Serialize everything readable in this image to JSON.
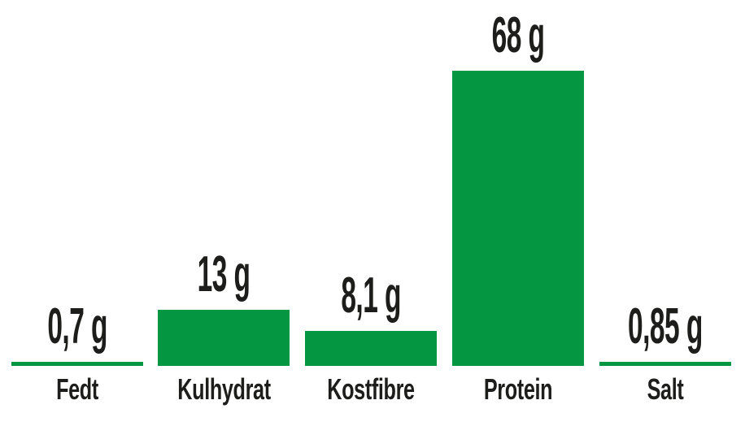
{
  "chart_data": {
    "type": "bar",
    "title": "",
    "orientation": "vertical",
    "categories": [
      "Fedt",
      "Kulhydrat",
      "Kostfibre",
      "Protein",
      "Salt"
    ],
    "values": [
      0.7,
      13,
      8.1,
      68,
      0.85
    ],
    "value_labels": [
      "0,7 g",
      "13 g",
      "8,1 g",
      "68 g",
      "0,85 g"
    ],
    "unit": "g",
    "ylim": [
      0,
      68
    ],
    "grid": false,
    "legend": false,
    "axes_visible": false,
    "bar_color": "#059641",
    "label_color": "#1d1d1b",
    "background_color": "#ffffff"
  }
}
